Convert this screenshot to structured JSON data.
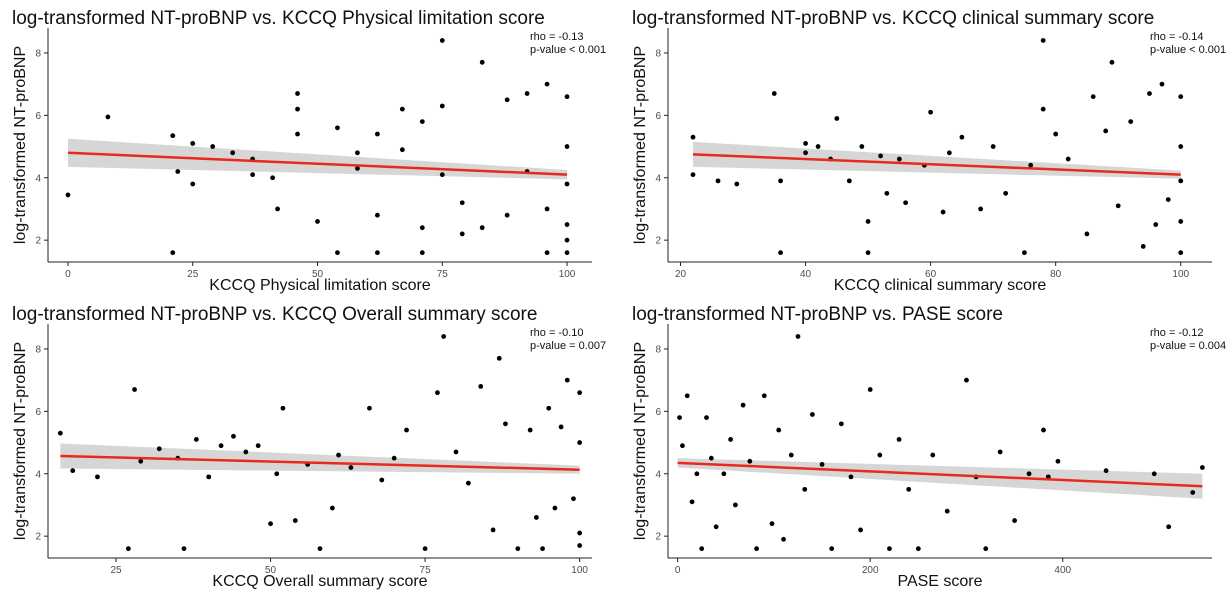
{
  "figure": {
    "colors": {
      "points": "#000000",
      "fit_line": "#e8291c",
      "ci_band": "#c8c8c8",
      "axis": "#222222"
    }
  },
  "chart_data": [
    {
      "type": "scatter",
      "title": "log-transformed NT-proBNP vs. KCCQ Physical limitation score",
      "xlabel": "KCCQ Physical limitation score",
      "ylabel": "log-transformed NT-proBNP",
      "xlim": [
        -4,
        105
      ],
      "ylim": [
        1.3,
        8.8
      ],
      "xticks": [
        0,
        25,
        50,
        75,
        100
      ],
      "yticks": [
        2,
        4,
        6,
        8
      ],
      "annotation": {
        "rho": "rho = -0.13",
        "pvalue": "p-value < 0.001"
      },
      "fit": {
        "x": [
          0,
          100
        ],
        "y": [
          4.8,
          4.1
        ],
        "ci_low": [
          4.35,
          3.95
        ],
        "ci_high": [
          5.25,
          4.25
        ]
      },
      "grid": false,
      "points": {
        "x": [
          0,
          8,
          21,
          21,
          22,
          25,
          25,
          29,
          33,
          37,
          41,
          46,
          46,
          46,
          54,
          58,
          58,
          62,
          62,
          67,
          67,
          71,
          71,
          75,
          75,
          75,
          83,
          79,
          88,
          92,
          92,
          96,
          96,
          100,
          100,
          100,
          100,
          100,
          54,
          50,
          83,
          88,
          96,
          100,
          42,
          37,
          62,
          79,
          71
        ],
        "y": [
          3.45,
          5.95,
          1.6,
          5.35,
          4.2,
          5.1,
          3.8,
          5.0,
          4.8,
          4.6,
          4.0,
          6.7,
          6.2,
          5.4,
          5.6,
          4.8,
          4.3,
          5.4,
          1.6,
          6.2,
          4.9,
          5.8,
          1.6,
          8.4,
          6.3,
          4.1,
          7.7,
          3.2,
          6.5,
          6.7,
          4.2,
          7.0,
          3.0,
          6.6,
          5.0,
          3.8,
          2.5,
          1.6,
          1.6,
          2.6,
          2.4,
          2.8,
          1.6,
          2.0,
          3.0,
          4.1,
          2.8,
          2.2,
          2.4
        ]
      }
    },
    {
      "type": "scatter",
      "title": "log-transformed NT-proBNP vs. KCCQ clinical summary score",
      "xlabel": "KCCQ clinical summary score",
      "ylabel": "log-transformed NT-proBNP",
      "xlim": [
        18,
        105
      ],
      "ylim": [
        1.3,
        8.8
      ],
      "xticks": [
        20,
        40,
        60,
        80,
        100
      ],
      "yticks": [
        2,
        4,
        6,
        8
      ],
      "annotation": {
        "rho": "rho = -0.14",
        "pvalue": "p-value < 0.001"
      },
      "fit": {
        "x": [
          22,
          100
        ],
        "y": [
          4.75,
          4.1
        ],
        "ci_low": [
          4.35,
          3.97
        ],
        "ci_high": [
          5.15,
          4.23
        ]
      },
      "grid": false,
      "points": {
        "x": [
          22,
          22,
          26,
          29,
          35,
          36,
          36,
          40,
          40,
          42,
          44,
          45,
          47,
          49,
          50,
          50,
          52,
          53,
          55,
          56,
          59,
          60,
          62,
          63,
          65,
          68,
          70,
          72,
          75,
          76,
          78,
          78,
          80,
          82,
          85,
          86,
          88,
          89,
          90,
          92,
          94,
          95,
          96,
          97,
          98,
          100,
          100,
          100,
          100,
          100
        ],
        "y": [
          5.3,
          4.1,
          3.9,
          3.8,
          6.7,
          3.9,
          1.6,
          5.1,
          4.8,
          5.0,
          4.6,
          5.9,
          3.9,
          5.0,
          2.6,
          1.6,
          4.7,
          3.5,
          4.6,
          3.2,
          4.4,
          6.1,
          2.9,
          4.8,
          5.3,
          3.0,
          5.0,
          3.5,
          1.6,
          4.4,
          8.4,
          6.2,
          5.4,
          4.6,
          2.2,
          6.6,
          5.5,
          7.7,
          3.1,
          5.8,
          1.8,
          6.7,
          2.5,
          7.0,
          3.3,
          6.6,
          5.0,
          3.9,
          2.6,
          1.6
        ]
      }
    },
    {
      "type": "scatter",
      "title": "log-transformed NT-proBNP vs. KCCQ Overall summary score",
      "xlabel": "KCCQ Overall summary score",
      "ylabel": "log-transformed NT-proBNP",
      "xlim": [
        14,
        102
      ],
      "ylim": [
        1.3,
        8.8
      ],
      "xticks": [
        25,
        50,
        75,
        100
      ],
      "yticks": [
        2,
        4,
        6,
        8
      ],
      "annotation": {
        "rho": "rho = -0.10",
        "pvalue": "p-value = 0.007"
      },
      "fit": {
        "x": [
          16,
          100
        ],
        "y": [
          4.57,
          4.13
        ],
        "ci_low": [
          4.17,
          4.0
        ],
        "ci_high": [
          4.97,
          4.26
        ]
      },
      "grid": false,
      "points": {
        "x": [
          16,
          18,
          22,
          27,
          28,
          29,
          32,
          35,
          36,
          38,
          40,
          42,
          44,
          46,
          48,
          50,
          51,
          52,
          54,
          56,
          58,
          60,
          61,
          63,
          66,
          68,
          70,
          72,
          75,
          77,
          78,
          80,
          82,
          84,
          86,
          87,
          88,
          90,
          92,
          93,
          94,
          95,
          96,
          97,
          98,
          99,
          100,
          100,
          100,
          100
        ],
        "y": [
          5.3,
          4.1,
          3.9,
          1.6,
          6.7,
          4.4,
          4.8,
          4.5,
          1.6,
          5.1,
          3.9,
          4.9,
          5.2,
          4.7,
          4.9,
          2.4,
          4.0,
          6.1,
          2.5,
          4.3,
          1.6,
          2.9,
          4.6,
          4.2,
          6.1,
          3.8,
          4.5,
          5.4,
          1.6,
          6.6,
          8.4,
          4.7,
          3.7,
          6.8,
          2.2,
          7.7,
          5.6,
          1.6,
          5.4,
          2.6,
          1.6,
          6.1,
          2.9,
          5.5,
          7.0,
          3.2,
          6.6,
          5.0,
          2.1,
          1.7
        ]
      }
    },
    {
      "type": "scatter",
      "title": "log-transformed NT-proBNP vs. PASE score",
      "xlabel": "PASE score",
      "ylabel": "log-transformed NT-proBNP",
      "xlim": [
        -10,
        555
      ],
      "ylim": [
        1.3,
        8.8
      ],
      "xticks": [
        0,
        200,
        400
      ],
      "yticks": [
        2,
        4,
        6,
        8
      ],
      "annotation": {
        "rho": "rho = -0.12",
        "pvalue": "p-value = 0.004"
      },
      "fit": {
        "x": [
          0,
          545
        ],
        "y": [
          4.35,
          3.6
        ],
        "ci_low": [
          4.2,
          3.2
        ],
        "ci_high": [
          4.5,
          4.0
        ]
      },
      "grid": false,
      "points": {
        "x": [
          2,
          5,
          10,
          15,
          20,
          25,
          30,
          35,
          40,
          48,
          55,
          60,
          68,
          75,
          82,
          90,
          98,
          105,
          110,
          118,
          125,
          132,
          140,
          150,
          160,
          170,
          180,
          190,
          200,
          210,
          220,
          230,
          240,
          250,
          265,
          280,
          300,
          310,
          320,
          335,
          350,
          365,
          380,
          385,
          395,
          445,
          495,
          510,
          535,
          545
        ],
        "y": [
          5.8,
          4.9,
          6.5,
          3.1,
          4.0,
          1.6,
          5.8,
          4.5,
          2.3,
          4.0,
          5.1,
          3.0,
          6.2,
          4.4,
          1.6,
          6.5,
          2.4,
          5.4,
          1.9,
          4.6,
          8.4,
          3.5,
          5.9,
          4.3,
          1.6,
          5.6,
          3.9,
          2.2,
          6.7,
          4.6,
          1.6,
          5.1,
          3.5,
          1.6,
          4.6,
          2.8,
          7.0,
          3.9,
          1.6,
          4.7,
          2.5,
          4.0,
          5.4,
          3.9,
          4.4,
          4.1,
          4.0,
          2.3,
          3.4,
          4.2
        ]
      }
    }
  ]
}
